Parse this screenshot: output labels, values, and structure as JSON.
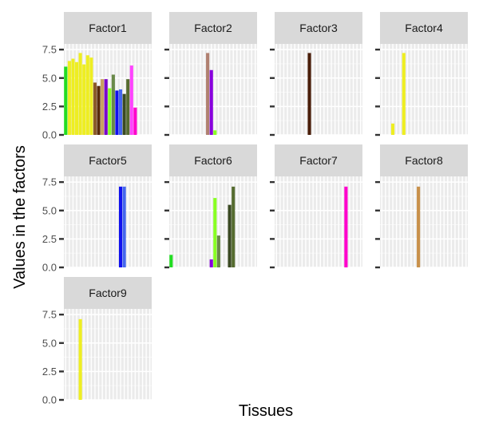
{
  "chart_data": {
    "type": "bar",
    "xlabel": "Tissues",
    "ylabel": "Values in the factors",
    "ylim": [
      0,
      8
    ],
    "yticks": [
      0,
      2.5,
      5,
      7.5
    ],
    "ytick_labels": [
      "0.0",
      "2.5",
      "5.0",
      "7.5"
    ],
    "category_count": 24,
    "panels": [
      {
        "name": "Factor1",
        "bars": [
          {
            "i": 0,
            "value": 6.0,
            "color": "#22dd22"
          },
          {
            "i": 1,
            "value": 6.5,
            "color": "#eeee22"
          },
          {
            "i": 2,
            "value": 6.7,
            "color": "#eeee22"
          },
          {
            "i": 3,
            "value": 6.4,
            "color": "#eeee22"
          },
          {
            "i": 4,
            "value": 7.2,
            "color": "#eeee22"
          },
          {
            "i": 5,
            "value": 6.2,
            "color": "#eeee22"
          },
          {
            "i": 6,
            "value": 7.0,
            "color": "#eeee22"
          },
          {
            "i": 7,
            "value": 6.8,
            "color": "#eeee22"
          },
          {
            "i": 8,
            "value": 4.6,
            "color": "#8b5a2b"
          },
          {
            "i": 9,
            "value": 4.3,
            "color": "#5a2a0a"
          },
          {
            "i": 10,
            "value": 4.9,
            "color": "#c8a060"
          },
          {
            "i": 11,
            "value": 4.9,
            "color": "#7a00cc"
          },
          {
            "i": 12,
            "value": 4.1,
            "color": "#88ff22"
          },
          {
            "i": 13,
            "value": 5.3,
            "color": "#6a8a4a"
          },
          {
            "i": 14,
            "value": 3.9,
            "color": "#1111ee"
          },
          {
            "i": 15,
            "value": 4.0,
            "color": "#4466ee"
          },
          {
            "i": 16,
            "value": 3.6,
            "color": "#3a4a22"
          },
          {
            "i": 17,
            "value": 4.9,
            "color": "#556b2f"
          },
          {
            "i": 18,
            "value": 6.1,
            "color": "#ff44ff"
          },
          {
            "i": 19,
            "value": 2.4,
            "color": "#ff00cc"
          }
        ]
      },
      {
        "name": "Factor2",
        "bars": [
          {
            "i": 10,
            "value": 7.2,
            "color": "#b08070"
          },
          {
            "i": 11,
            "value": 5.7,
            "color": "#8800dd"
          },
          {
            "i": 12,
            "value": 0.4,
            "color": "#88ff22"
          }
        ]
      },
      {
        "name": "Factor3",
        "bars": [
          {
            "i": 9,
            "value": 7.2,
            "color": "#4a1e0a"
          }
        ]
      },
      {
        "name": "Factor4",
        "bars": [
          {
            "i": 3,
            "value": 1.0,
            "color": "#eeee22"
          },
          {
            "i": 6,
            "value": 7.2,
            "color": "#eeee22"
          }
        ]
      },
      {
        "name": "Factor5",
        "bars": [
          {
            "i": 15,
            "value": 7.1,
            "color": "#1111ee"
          },
          {
            "i": 16,
            "value": 7.1,
            "color": "#4466ee"
          }
        ]
      },
      {
        "name": "Factor6",
        "bars": [
          {
            "i": 0,
            "value": 1.1,
            "color": "#22dd22"
          },
          {
            "i": 11,
            "value": 0.7,
            "color": "#8800dd"
          },
          {
            "i": 12,
            "value": 6.1,
            "color": "#88ff22"
          },
          {
            "i": 13,
            "value": 2.8,
            "color": "#6a8a4a"
          },
          {
            "i": 16,
            "value": 5.5,
            "color": "#3a4a22"
          },
          {
            "i": 17,
            "value": 7.1,
            "color": "#556b2f"
          }
        ]
      },
      {
        "name": "Factor7",
        "bars": [
          {
            "i": 19,
            "value": 7.1,
            "color": "#ff00cc"
          }
        ]
      },
      {
        "name": "Factor8",
        "bars": [
          {
            "i": 10,
            "value": 7.1,
            "color": "#c8904a"
          }
        ]
      },
      {
        "name": "Factor9",
        "bars": [
          {
            "i": 4,
            "value": 7.1,
            "color": "#eeee22"
          }
        ]
      }
    ]
  }
}
